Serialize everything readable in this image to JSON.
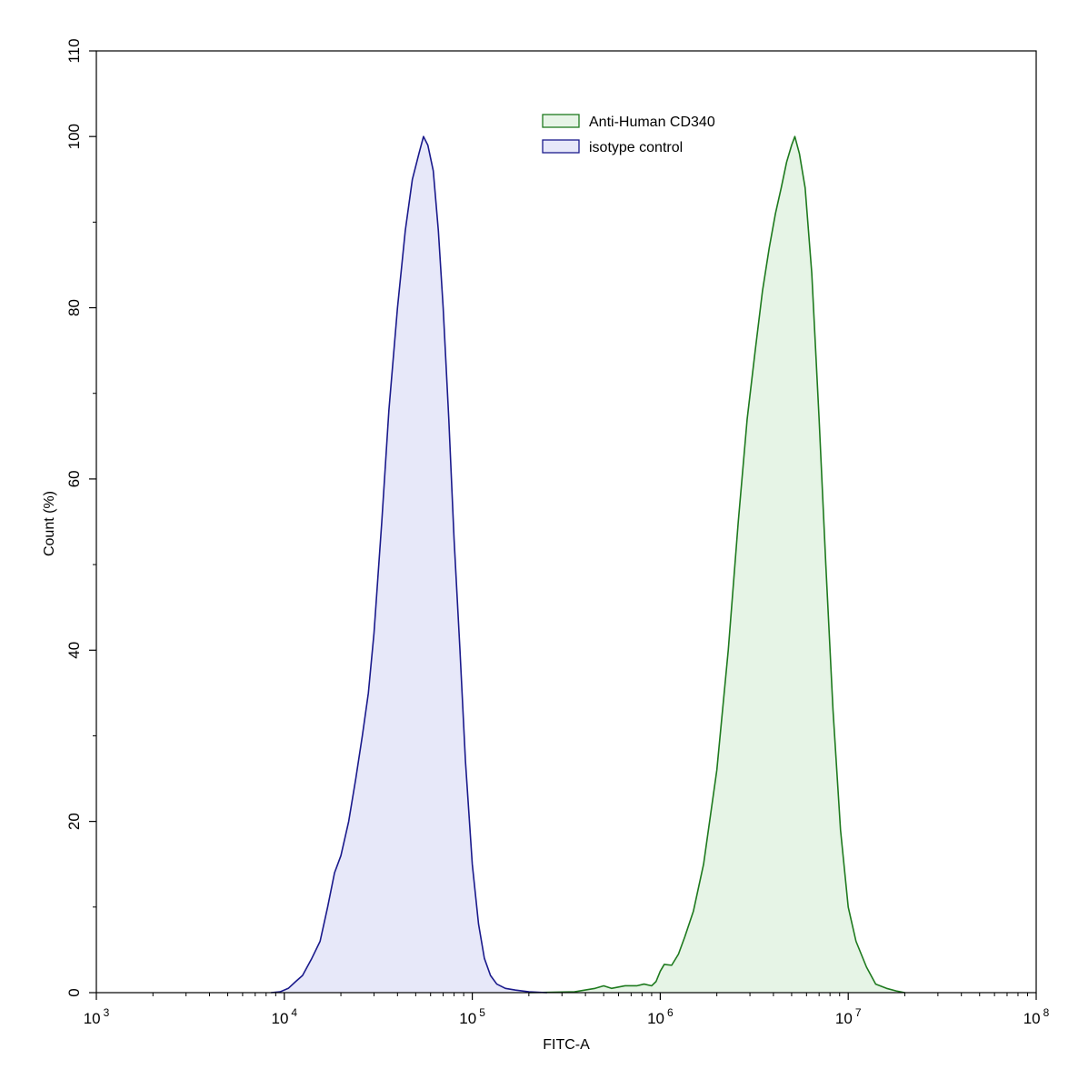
{
  "chart_data": {
    "type": "area",
    "title": "",
    "xlabel": "FITC-A",
    "ylabel": "Count  (%)",
    "x_scale": "log10",
    "xlim": [
      1000,
      100000000
    ],
    "ylim": [
      0,
      110
    ],
    "x_ticks": [
      {
        "value": 1000,
        "base": "10",
        "exp": "3"
      },
      {
        "value": 10000,
        "base": "10",
        "exp": "4"
      },
      {
        "value": 100000,
        "base": "10",
        "exp": "5"
      },
      {
        "value": 1000000,
        "base": "10",
        "exp": "6"
      },
      {
        "value": 10000000,
        "base": "10",
        "exp": "7"
      },
      {
        "value": 100000000,
        "base": "10",
        "exp": "8"
      }
    ],
    "y_ticks": [
      {
        "value": 0,
        "label": "0"
      },
      {
        "value": 20,
        "label": "20"
      },
      {
        "value": 40,
        "label": "40"
      },
      {
        "value": 60,
        "label": "60"
      },
      {
        "value": 80,
        "label": "80"
      },
      {
        "value": 100,
        "label": "100"
      },
      {
        "value": 110,
        "label": "110"
      }
    ],
    "grid": false,
    "legend_position": "top-center",
    "series": [
      {
        "name": "Anti-Human CD340",
        "stroke": "#1e7a1e",
        "fill": "#e6f4e6",
        "x": [
          200000,
          350000,
          450000,
          500000,
          550000,
          650000,
          750000,
          820000,
          900000,
          950000,
          1000000,
          1050000,
          1150000,
          1250000,
          1350000,
          1500000,
          1700000,
          2000000,
          2300000,
          2600000,
          2900000,
          3200000,
          3500000,
          3800000,
          4100000,
          4400000,
          4700000,
          5000000,
          5200000,
          5500000,
          5900000,
          6400000,
          7000000,
          7600000,
          8300000,
          9100000,
          10000000,
          11000000,
          12500000,
          14000000,
          16000000,
          18000000,
          20000000
        ],
        "y": [
          0,
          0.1,
          0.5,
          0.8,
          0.5,
          0.8,
          0.8,
          1.0,
          0.8,
          1.3,
          2.5,
          3.3,
          3.2,
          4.5,
          6.5,
          9.5,
          15,
          26,
          40,
          55,
          67,
          75,
          82,
          87,
          91,
          94,
          97,
          99,
          100,
          98,
          94,
          84,
          67,
          50,
          33,
          19,
          10,
          6,
          3,
          1,
          0.5,
          0.2,
          0
        ]
      },
      {
        "name": "isotype control",
        "stroke": "#1a1a8c",
        "fill": "#e7e8f9",
        "x": [
          8500,
          9500,
          10500,
          11500,
          12500,
          14000,
          15500,
          17000,
          18500,
          20000,
          22000,
          24000,
          26000,
          28000,
          30000,
          33000,
          36000,
          40000,
          44000,
          48000,
          52000,
          55000,
          58000,
          62000,
          66000,
          70000,
          75000,
          80000,
          86000,
          92000,
          100000,
          108000,
          116000,
          125000,
          135000,
          150000,
          170000,
          200000,
          250000
        ],
        "y": [
          0,
          0.1,
          0.5,
          1.3,
          2,
          4,
          6,
          10,
          14,
          16,
          20,
          25,
          30,
          35,
          42,
          55,
          68,
          80,
          89,
          95,
          98,
          100,
          99,
          96,
          89,
          80,
          67,
          53,
          40,
          27,
          15,
          8,
          4,
          2,
          1,
          0.5,
          0.3,
          0.1,
          0
        ]
      }
    ]
  }
}
